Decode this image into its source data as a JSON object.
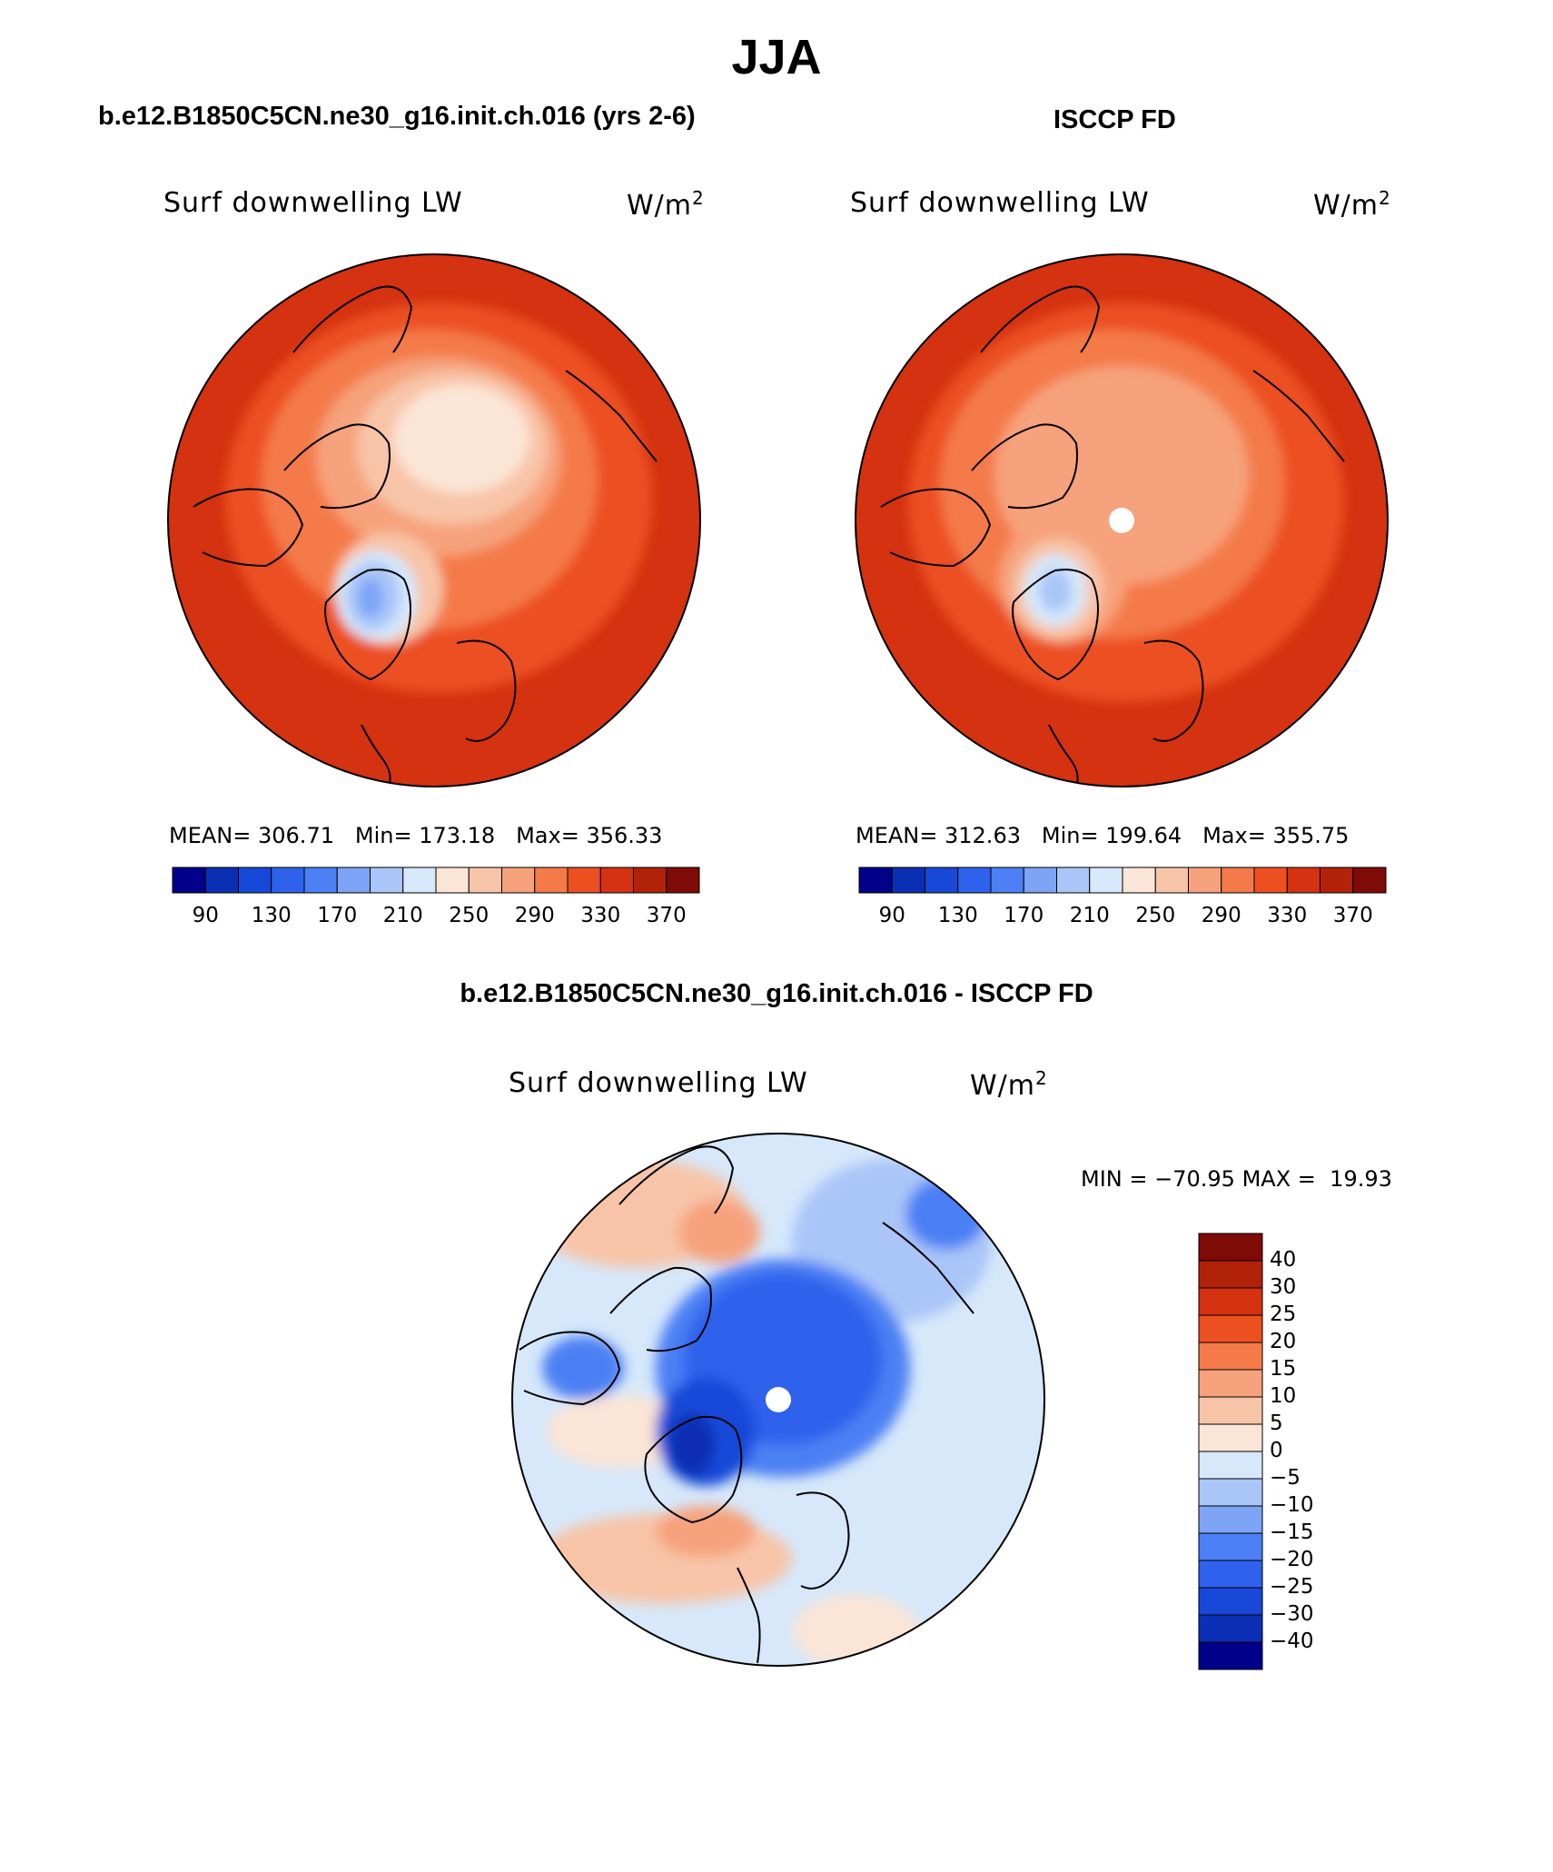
{
  "page": {
    "season": "JJA",
    "panels": {
      "model": {
        "case_title": "b.e12.B1850C5CN.ne30_g16.init.ch.016 (yrs 2-6)",
        "variable": "Surf downwelling LW",
        "units_base": "W/m",
        "units_exp": "2",
        "stats": {
          "mean_label": "MEAN=",
          "mean": "306.71",
          "min_label": "Min=",
          "min": "173.18",
          "max_label": "Max=",
          "max": "356.33"
        }
      },
      "obs": {
        "case_title": "ISCCP FD",
        "variable": "Surf downwelling LW",
        "units_base": "W/m",
        "units_exp": "2",
        "stats": {
          "mean_label": "MEAN=",
          "mean": "312.63",
          "min_label": "Min=",
          "min": "199.64",
          "max_label": "Max=",
          "max": "355.75"
        }
      },
      "diff": {
        "case_title": "b.e12.B1850C5CN.ne30_g16.init.ch.016 - ISCCP FD",
        "variable": "Surf downwelling LW",
        "units_base": "W/m",
        "units_exp": "2",
        "minmax": {
          "min_label": "MIN =",
          "min": "−70.95",
          "max_label": "MAX =",
          "max": "19.93"
        }
      }
    }
  },
  "chart_data": [
    {
      "type": "heatmap",
      "title": "b.e12.B1850C5CN.ne30_g16.init.ch.016 (yrs 2-6)",
      "variable": "Surf downwelling LW",
      "units": "W/m2",
      "projection": "north polar stereographic",
      "mean": 306.71,
      "min": 173.18,
      "max": 356.33,
      "colorbar": {
        "levels": [
          90,
          110,
          130,
          150,
          170,
          190,
          210,
          230,
          250,
          270,
          290,
          310,
          330,
          350,
          370
        ],
        "tick_labels": [
          "90",
          "130",
          "170",
          "210",
          "250",
          "290",
          "330",
          "370"
        ],
        "colors": [
          "#00008a",
          "#0a2fb4",
          "#1848d8",
          "#2e62ec",
          "#4c80f4",
          "#7ea4f6",
          "#aac6f8",
          "#d6e8fa",
          "#fbe5d6",
          "#f8c4a8",
          "#f6a27c",
          "#f47a4a",
          "#ec5020",
          "#d43210",
          "#b22208",
          "#7e0b06"
        ]
      },
      "regions": [
        {
          "name": "greenland_interior",
          "approx_value": 200
        },
        {
          "name": "central_arctic",
          "approx_value": 265
        },
        {
          "name": "midlatitude_ring",
          "approx_value": 335
        }
      ]
    },
    {
      "type": "heatmap",
      "title": "ISCCP FD",
      "variable": "Surf downwelling LW",
      "units": "W/m2",
      "projection": "north polar stereographic",
      "mean": 312.63,
      "min": 199.64,
      "max": 355.75,
      "colorbar": {
        "levels": [
          90,
          110,
          130,
          150,
          170,
          190,
          210,
          230,
          250,
          270,
          290,
          310,
          330,
          350,
          370
        ],
        "tick_labels": [
          "90",
          "130",
          "170",
          "210",
          "250",
          "290",
          "330",
          "370"
        ],
        "colors": [
          "#00008a",
          "#0a2fb4",
          "#1848d8",
          "#2e62ec",
          "#4c80f4",
          "#7ea4f6",
          "#aac6f8",
          "#d6e8fa",
          "#fbe5d6",
          "#f8c4a8",
          "#f6a27c",
          "#f47a4a",
          "#ec5020",
          "#d43210",
          "#b22208",
          "#7e0b06"
        ]
      },
      "regions": [
        {
          "name": "greenland_interior",
          "approx_value": 215
        },
        {
          "name": "central_arctic",
          "approx_value": 285
        },
        {
          "name": "midlatitude_ring",
          "approx_value": 335
        }
      ]
    },
    {
      "type": "heatmap",
      "title": "b.e12.B1850C5CN.ne30_g16.init.ch.016 - ISCCP FD",
      "variable": "Surf downwelling LW",
      "units": "W/m2",
      "projection": "north polar stereographic",
      "min": -70.95,
      "max": 19.93,
      "colorbar": {
        "orientation": "vertical",
        "levels": [
          -40,
          -30,
          -25,
          -20,
          -15,
          -10,
          -5,
          0,
          5,
          10,
          15,
          20,
          25,
          30,
          40
        ],
        "tick_labels": [
          "40",
          "30",
          "25",
          "20",
          "15",
          "10",
          "5",
          "0",
          "−5",
          "−10",
          "−15",
          "−20",
          "−25",
          "−30",
          "−40"
        ],
        "colors": [
          "#7e0b06",
          "#b22208",
          "#d43210",
          "#ec5020",
          "#f47a4a",
          "#f6a27c",
          "#f8c4a8",
          "#fbe5d6",
          "#d6e8fa",
          "#aac6f8",
          "#7ea4f6",
          "#4c80f4",
          "#2e62ec",
          "#1848d8",
          "#0a2fb4",
          "#00008a"
        ]
      },
      "regions": [
        {
          "name": "central_arctic",
          "approx_value": -22
        },
        {
          "name": "greenland",
          "approx_value": -30
        },
        {
          "name": "midlatitude_ring",
          "approx_value": -3
        }
      ]
    }
  ]
}
